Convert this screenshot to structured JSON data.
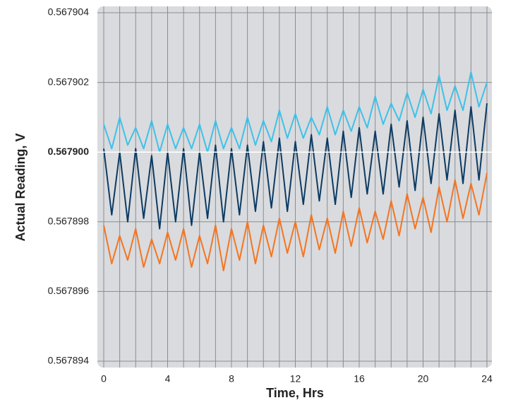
{
  "chart_data": {
    "type": "line",
    "y_label": "Actual Reading, V",
    "x_label": "Time, Hrs",
    "x": [
      0,
      0.5,
      1,
      1.5,
      2,
      2.5,
      3,
      3.5,
      4,
      4.5,
      5,
      5.5,
      6,
      6.5,
      7,
      7.5,
      8,
      8.5,
      9,
      9.5,
      10,
      10.5,
      11,
      11.5,
      12,
      12.5,
      13,
      13.5,
      14,
      14.5,
      15,
      15.5,
      16,
      16.5,
      17,
      17.5,
      18,
      18.5,
      19,
      19.5,
      20,
      20.5,
      21,
      21.5,
      22,
      22.5,
      23,
      23.5,
      24
    ],
    "series": [
      {
        "color": "#3ec1ea",
        "values": [
          0.5679008,
          0.5679001,
          0.567901,
          0.5679002,
          0.5679007,
          0.5679001,
          0.5679009,
          0.5679,
          0.5679008,
          0.5679001,
          0.5679007,
          0.5679001,
          0.5679008,
          0.5679,
          0.5679009,
          0.5679001,
          0.5679007,
          0.5679001,
          0.567901,
          0.5679002,
          0.5679009,
          0.5679003,
          0.5679012,
          0.5679004,
          0.5679011,
          0.5679004,
          0.567901,
          0.5679005,
          0.5679013,
          0.5679005,
          0.5679012,
          0.5679006,
          0.5679013,
          0.5679007,
          0.5679016,
          0.5679008,
          0.5679014,
          0.5679009,
          0.5679017,
          0.567901,
          0.5679018,
          0.5679011,
          0.5679022,
          0.5679012,
          0.5679019,
          0.5679012,
          0.5679023,
          0.5679013,
          0.567902
        ]
      },
      {
        "color": "#0d3b63",
        "values": [
          0.5679001,
          0.5678982,
          0.5679,
          0.567898,
          0.5679001,
          0.5678981,
          0.5678999,
          0.5678978,
          0.5679,
          0.567898,
          0.5679001,
          0.5678979,
          0.5679,
          0.5678981,
          0.5679002,
          0.567898,
          0.5679001,
          0.5678982,
          0.5679002,
          0.5678983,
          0.5679003,
          0.5678984,
          0.5679004,
          0.5678983,
          0.5679003,
          0.5678985,
          0.5679005,
          0.5678986,
          0.5679004,
          0.5678985,
          0.5679006,
          0.5678987,
          0.5679007,
          0.5678988,
          0.5679006,
          0.5678988,
          0.5679008,
          0.567899,
          0.5679009,
          0.5678989,
          0.567901,
          0.5678991,
          0.5679011,
          0.5678992,
          0.5679012,
          0.5678991,
          0.5679013,
          0.5678992,
          0.5679014
        ]
      },
      {
        "color": "#f47521",
        "values": [
          0.5678979,
          0.5678968,
          0.5678976,
          0.5678969,
          0.5678978,
          0.5678967,
          0.5678975,
          0.5678968,
          0.5678977,
          0.5678969,
          0.5678978,
          0.5678967,
          0.5678976,
          0.5678968,
          0.5678979,
          0.5678966,
          0.5678978,
          0.5678969,
          0.567898,
          0.5678968,
          0.5678979,
          0.567897,
          0.5678981,
          0.5678971,
          0.567898,
          0.567897,
          0.5678982,
          0.5678972,
          0.5678981,
          0.5678971,
          0.5678983,
          0.5678973,
          0.5678984,
          0.5678974,
          0.5678983,
          0.5678975,
          0.5678986,
          0.5678976,
          0.5678988,
          0.5678978,
          0.5678987,
          0.5678977,
          0.567899,
          0.567898,
          0.5678992,
          0.5678981,
          0.5678991,
          0.5678982,
          0.5678994
        ]
      }
    ],
    "xlim": [
      0,
      24
    ],
    "xticks": [
      0,
      4,
      8,
      12,
      16,
      20,
      24
    ],
    "x_minor_ticks": [
      1,
      2,
      3,
      5,
      6,
      7,
      9,
      10,
      11,
      13,
      14,
      15,
      17,
      18,
      19,
      21,
      22,
      23
    ],
    "ylim": [
      0.567894,
      0.567904
    ],
    "yticks": [
      0.567894,
      0.567896,
      0.567898,
      {
        "value": 0.5679,
        "label": "0.567900",
        "bold": true
      },
      0.567902,
      0.567904
    ],
    "grid": true
  }
}
